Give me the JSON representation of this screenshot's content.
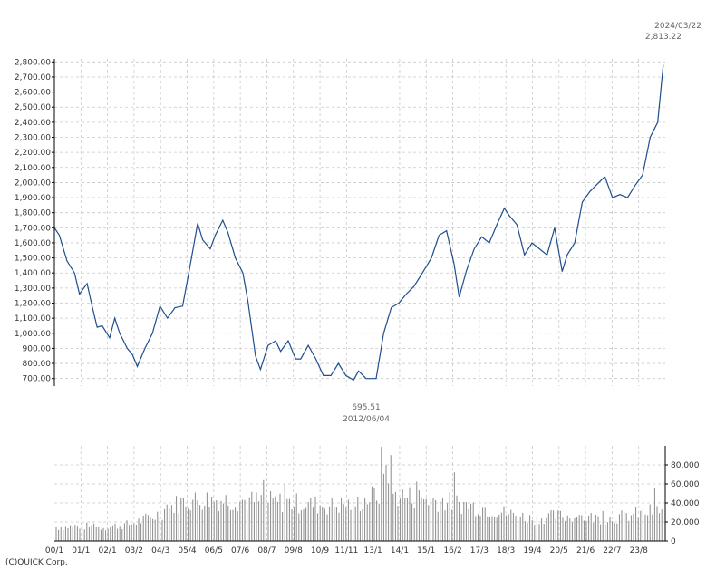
{
  "corner_date": "2024/03/22",
  "corner_value": "2,813.22",
  "min_note_value": "695.51",
  "min_note_date": "2012/06/04",
  "copyright": "(C)QUICK Corp.",
  "colors": {
    "line": "#1f4e8c",
    "grid": "#c8c8c8",
    "bars": "#8a8a8a",
    "axis": "#000000"
  },
  "chart_data": [
    {
      "type": "line",
      "title": "",
      "x_tick_labels": [
        "00/1",
        "01/1",
        "02/1",
        "03/2",
        "04/3",
        "05/4",
        "06/5",
        "07/6",
        "08/7",
        "09/8",
        "10/9",
        "11/11",
        "13/1",
        "14/1",
        "15/1",
        "16/2",
        "17/3",
        "18/3",
        "19/4",
        "20/5",
        "21/6",
        "22/7",
        "23/8"
      ],
      "y_tick_labels": [
        "700.00",
        "800.00",
        "900.00",
        "1,000.00",
        "1,100.00",
        "1,200.00",
        "1,300.00",
        "1,400.00",
        "1,500.00",
        "1,600.00",
        "1,700.00",
        "1,800.00",
        "1,900.00",
        "2,000.00",
        "2,100.00",
        "2,200.00",
        "2,300.00",
        "2,400.00",
        "2,500.00",
        "2,600.00",
        "2,700.00",
        "2,800.00"
      ],
      "ylim": [
        650,
        2820
      ],
      "x_unit": "fractional year",
      "series": [
        {
          "x": [
            2000.0,
            2000.2,
            2000.5,
            2000.8,
            2001.0,
            2001.3,
            2001.5,
            2001.7,
            2001.9,
            2002.2,
            2002.4,
            2002.6,
            2002.9,
            2003.1,
            2003.3,
            2003.6,
            2003.9,
            2004.2,
            2004.5,
            2004.8,
            2005.1,
            2005.4,
            2005.7,
            2005.9,
            2006.2,
            2006.4,
            2006.7,
            2006.9,
            2007.2,
            2007.5,
            2007.7,
            2008.0,
            2008.2,
            2008.5,
            2008.8,
            2009.0,
            2009.3,
            2009.6,
            2009.8,
            2010.1,
            2010.4,
            2010.7,
            2011.0,
            2011.3,
            2011.6,
            2011.9,
            2012.1,
            2012.4,
            2012.8,
            2013.1,
            2013.4,
            2013.7,
            2014.0,
            2014.3,
            2014.6,
            2015.0,
            2015.3,
            2015.6,
            2015.9,
            2016.1,
            2016.4,
            2016.7,
            2017.0,
            2017.3,
            2017.6,
            2017.9,
            2018.1,
            2018.4,
            2018.7,
            2019.0,
            2019.3,
            2019.6,
            2019.9,
            2020.2,
            2020.4,
            2020.7,
            2021.0,
            2021.3,
            2021.6,
            2021.9,
            2022.2,
            2022.5,
            2022.8,
            2023.1,
            2023.4,
            2023.7,
            2024.0,
            2024.22
          ],
          "values": [
            1700,
            1650,
            1480,
            1400,
            1260,
            1330,
            1180,
            1040,
            1050,
            970,
            1100,
            1000,
            900,
            860,
            780,
            900,
            1000,
            1180,
            1100,
            1170,
            1180,
            1450,
            1730,
            1620,
            1560,
            1650,
            1750,
            1670,
            1500,
            1400,
            1210,
            850,
            760,
            920,
            950,
            880,
            950,
            830,
            830,
            920,
            830,
            720,
            720,
            800,
            720,
            690,
            750,
            700,
            700,
            1000,
            1170,
            1200,
            1260,
            1310,
            1390,
            1500,
            1650,
            1680,
            1460,
            1240,
            1420,
            1560,
            1640,
            1600,
            1720,
            1830,
            1780,
            1720,
            1520,
            1600,
            1560,
            1520,
            1700,
            1410,
            1520,
            1600,
            1870,
            1940,
            1990,
            2040,
            1900,
            1920,
            1900,
            1980,
            2050,
            2300,
            2400,
            2780
          ]
        }
      ]
    },
    {
      "type": "bar",
      "title": "",
      "x_tick_labels": [
        "00/1",
        "01/1",
        "02/1",
        "03/2",
        "04/3",
        "05/4",
        "06/5",
        "07/6",
        "08/7",
        "09/8",
        "10/9",
        "11/11",
        "13/1",
        "14/1",
        "15/1",
        "16/2",
        "17/3",
        "18/3",
        "19/4",
        "20/5",
        "21/6",
        "22/7",
        "23/8"
      ],
      "y_tick_labels": [
        "0",
        "20,000",
        "40,000",
        "60,000",
        "80,000"
      ],
      "ylim": [
        0,
        100000
      ],
      "series": [
        {
          "x": [
            2000,
            2001,
            2002,
            2003,
            2004,
            2005,
            2006,
            2007,
            2008,
            2009,
            2010,
            2011,
            2012,
            2013,
            2014,
            2015,
            2016,
            2017,
            2018,
            2019,
            2020,
            2021,
            2022,
            2023,
            2024
          ],
          "values": [
            15000,
            16000,
            15000,
            18000,
            27000,
            42000,
            45000,
            44000,
            43000,
            42000,
            40000,
            38000,
            40000,
            52000,
            48000,
            45000,
            41000,
            36000,
            30000,
            24000,
            27000,
            26000,
            24000,
            28000,
            33000
          ]
        }
      ]
    }
  ]
}
